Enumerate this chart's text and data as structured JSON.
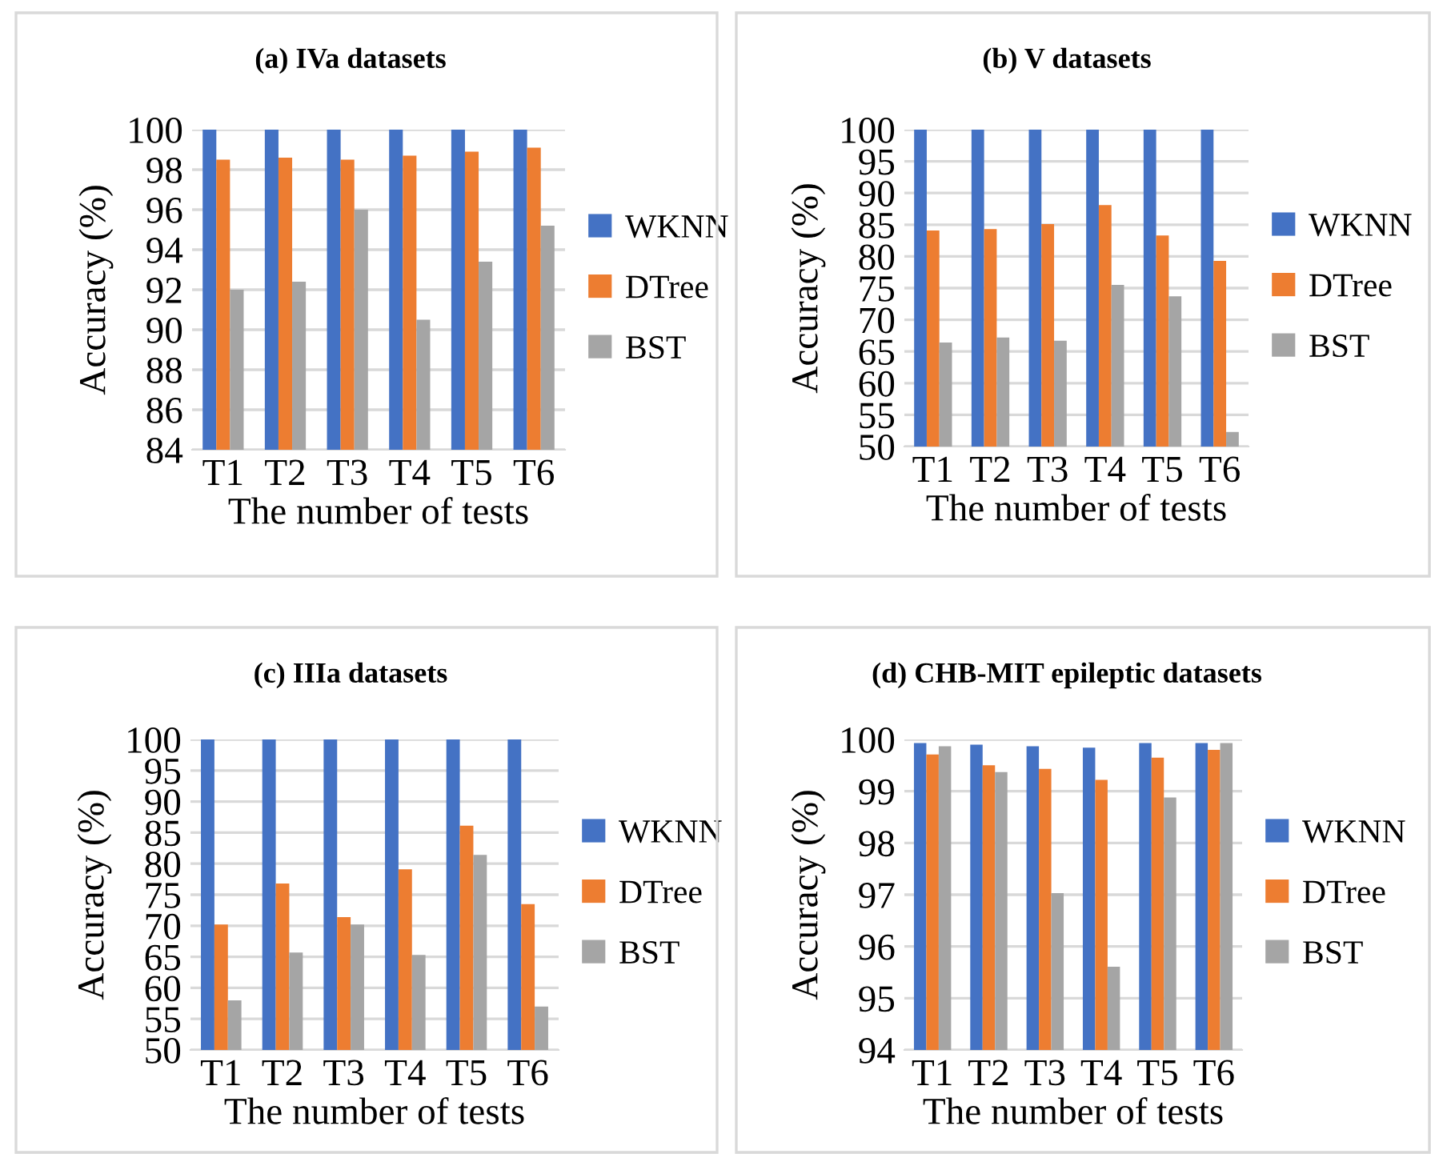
{
  "chart_data": [
    {
      "type": "bar",
      "title": "(a) IVa datasets",
      "xlabel": "The number of tests",
      "ylabel": "Accuracy (%)",
      "categories": [
        "T1",
        "T2",
        "T3",
        "T4",
        "T5",
        "T6"
      ],
      "ylim": [
        84,
        100
      ],
      "yticks": [
        84,
        86,
        88,
        90,
        92,
        94,
        96,
        98,
        100
      ],
      "grid": "y",
      "legend": "right",
      "series": [
        {
          "name": "WKNN",
          "color": "#4472c4",
          "values": [
            100,
            100,
            100,
            100,
            100,
            100
          ]
        },
        {
          "name": "DTree",
          "color": "#ed7d31",
          "values": [
            98.5,
            98.6,
            98.5,
            98.7,
            98.9,
            99.1
          ]
        },
        {
          "name": "BST",
          "color": "#a5a5a5",
          "values": [
            92.0,
            92.4,
            96.0,
            90.5,
            93.4,
            95.2
          ]
        }
      ]
    },
    {
      "type": "bar",
      "title": "(b) V datasets",
      "xlabel": "The number of tests",
      "ylabel": "Accuracy (%)",
      "categories": [
        "T1",
        "T2",
        "T3",
        "T4",
        "T5",
        "T6"
      ],
      "ylim": [
        50,
        100
      ],
      "yticks": [
        50,
        55,
        60,
        65,
        70,
        75,
        80,
        85,
        90,
        95,
        100
      ],
      "grid": "y",
      "legend": "right",
      "series": [
        {
          "name": "WKNN",
          "color": "#4472c4",
          "values": [
            100,
            100,
            100,
            100,
            100,
            100
          ]
        },
        {
          "name": "DTree",
          "color": "#ed7d31",
          "values": [
            84.1,
            84.3,
            85.1,
            88.1,
            83.3,
            79.3
          ]
        },
        {
          "name": "BST",
          "color": "#a5a5a5",
          "values": [
            66.4,
            67.2,
            66.7,
            75.5,
            73.7,
            52.3
          ]
        }
      ]
    },
    {
      "type": "bar",
      "title": "(c) IIIa datasets",
      "xlabel": "The number of tests",
      "ylabel": "Accuracy (%)",
      "categories": [
        "T1",
        "T2",
        "T3",
        "T4",
        "T5",
        "T6"
      ],
      "ylim": [
        50,
        100
      ],
      "yticks": [
        50,
        55,
        60,
        65,
        70,
        75,
        80,
        85,
        90,
        95,
        100
      ],
      "grid": "y",
      "legend": "right",
      "series": [
        {
          "name": "WKNN",
          "color": "#4472c4",
          "values": [
            100,
            100,
            100,
            100,
            100,
            100
          ]
        },
        {
          "name": "DTree",
          "color": "#ed7d31",
          "values": [
            70.2,
            76.8,
            71.4,
            79.1,
            86.1,
            73.5
          ]
        },
        {
          "name": "BST",
          "color": "#a5a5a5",
          "values": [
            58.0,
            65.7,
            70.2,
            65.3,
            81.4,
            57.0
          ]
        }
      ]
    },
    {
      "type": "bar",
      "title": "(d) CHB-MIT epileptic datasets",
      "xlabel": "The number of tests",
      "ylabel": "Accuracy (%)",
      "categories": [
        "T1",
        "T2",
        "T3",
        "T4",
        "T5",
        "T6"
      ],
      "ylim": [
        94,
        100
      ],
      "yticks": [
        94,
        95,
        96,
        97,
        98,
        99,
        100
      ],
      "grid": "y",
      "legend": "right",
      "series": [
        {
          "name": "WKNN",
          "color": "#4472c4",
          "values": [
            99.93,
            99.9,
            99.87,
            99.84,
            99.93,
            99.93
          ]
        },
        {
          "name": "DTree",
          "color": "#ed7d31",
          "values": [
            99.71,
            99.5,
            99.43,
            99.22,
            99.65,
            99.8
          ]
        },
        {
          "name": "BST",
          "color": "#a5a5a5",
          "values": [
            99.87,
            99.37,
            97.03,
            95.61,
            98.88,
            99.93
          ]
        }
      ]
    }
  ]
}
